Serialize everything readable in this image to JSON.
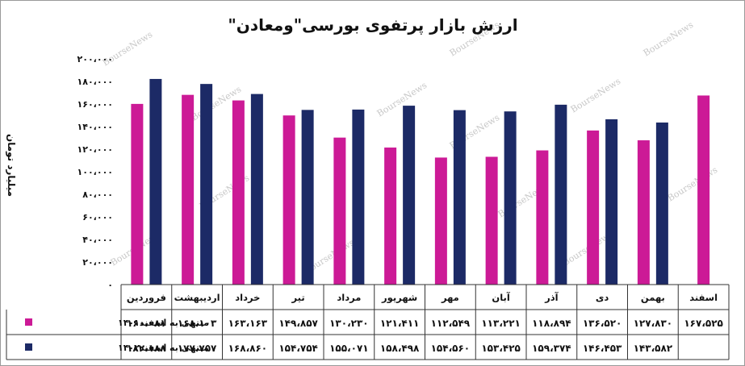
{
  "chart_data": {
    "type": "bar",
    "title": "ارزش بازار پرتفوی بورسی\"ومعادن\"",
    "xlabel": "",
    "ylabel": "میلیارد تومان",
    "ylim": [
      0,
      200000
    ],
    "y_ticks": [
      "۰",
      "۲۰،۰۰۰",
      "۴۰،۰۰۰",
      "۶۰،۰۰۰",
      "۸۰،۰۰۰",
      "۱۰۰،۰۰۰",
      "۱۲۰،۰۰۰",
      "۱۴۰،۰۰۰",
      "۱۶۰،۰۰۰",
      "۱۸۰،۰۰۰",
      "۲۰۰،۰۰۰"
    ],
    "y_tick_values": [
      0,
      20000,
      40000,
      60000,
      80000,
      100000,
      120000,
      140000,
      160000,
      180000,
      200000
    ],
    "grid": false,
    "legend": "data-table-left",
    "categories": [
      "فروردین",
      "اردیبهشت",
      "خرداد",
      "تیر",
      "مرداد",
      "شهریور",
      "مهر",
      "آبان",
      "آذر",
      "دی",
      "بهمن",
      "اسفند"
    ],
    "series": [
      {
        "name": "منتهی به اسفند۱۴۰۱",
        "color": "#cc1a96",
        "values": [
          160081,
          168103,
          163163,
          149857,
          130230,
          121411,
          112549,
          113221,
          118894,
          136520,
          127830,
          167525
        ],
        "labels": [
          "۱۶۰،۰۸۱",
          "۱۶۸،۱۰۳",
          "۱۶۳،۱۶۳",
          "۱۴۹،۸۵۷",
          "۱۳۰،۲۳۰",
          "۱۲۱،۴۱۱",
          "۱۱۲،۵۴۹",
          "۱۱۳،۲۲۱",
          "۱۱۸،۸۹۴",
          "۱۳۶،۵۲۰",
          "۱۲۷،۸۳۰",
          "۱۶۷،۵۲۵"
        ]
      },
      {
        "name": "منتهی به اسفند۱۴۰۲",
        "color": "#1c2a66",
        "values": [
          182188,
          177757,
          168860,
          154754,
          155071,
          158498,
          154560,
          153425,
          159374,
          146453,
          143582,
          null
        ],
        "labels": [
          "۱۸۲،۱۸۸",
          "۱۷۷،۷۵۷",
          "۱۶۸،۸۶۰",
          "۱۵۴،۷۵۴",
          "۱۵۵،۰۷۱",
          "۱۵۸،۴۹۸",
          "۱۵۴،۵۶۰",
          "۱۵۳،۴۲۵",
          "۱۵۹،۳۷۴",
          "۱۴۶،۴۵۳",
          "۱۴۳،۵۸۲",
          ""
        ]
      }
    ],
    "watermark": "BourseNews"
  }
}
